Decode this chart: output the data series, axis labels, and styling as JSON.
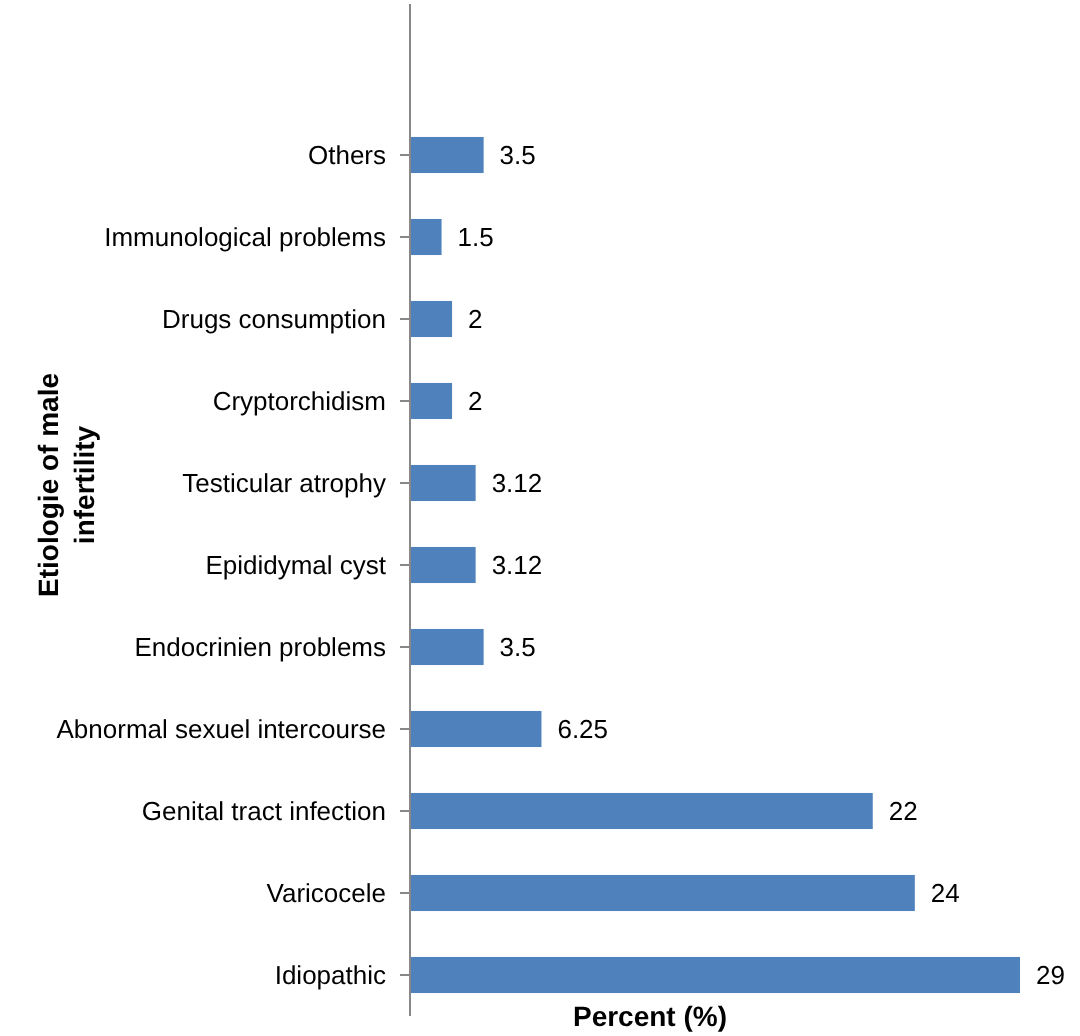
{
  "chart_data": {
    "type": "bar",
    "orientation": "horizontal",
    "ylabel": "Etiologie of male infertility",
    "xlabel": "Percent (%)",
    "categories": [
      "Others",
      "Immunological problems",
      "Drugs consumption",
      "Cryptorchidism",
      "Testicular atrophy",
      "Epididymal cyst",
      "Endocrinien problems",
      "Abnormal sexuel intercourse",
      "Genital tract infection",
      "Varicocele",
      "Idiopathic"
    ],
    "values": [
      3.5,
      1.5,
      2,
      2,
      3.12,
      3.12,
      3.5,
      6.25,
      22,
      24,
      29
    ],
    "color": "#4f81bd",
    "data_labels": true
  }
}
